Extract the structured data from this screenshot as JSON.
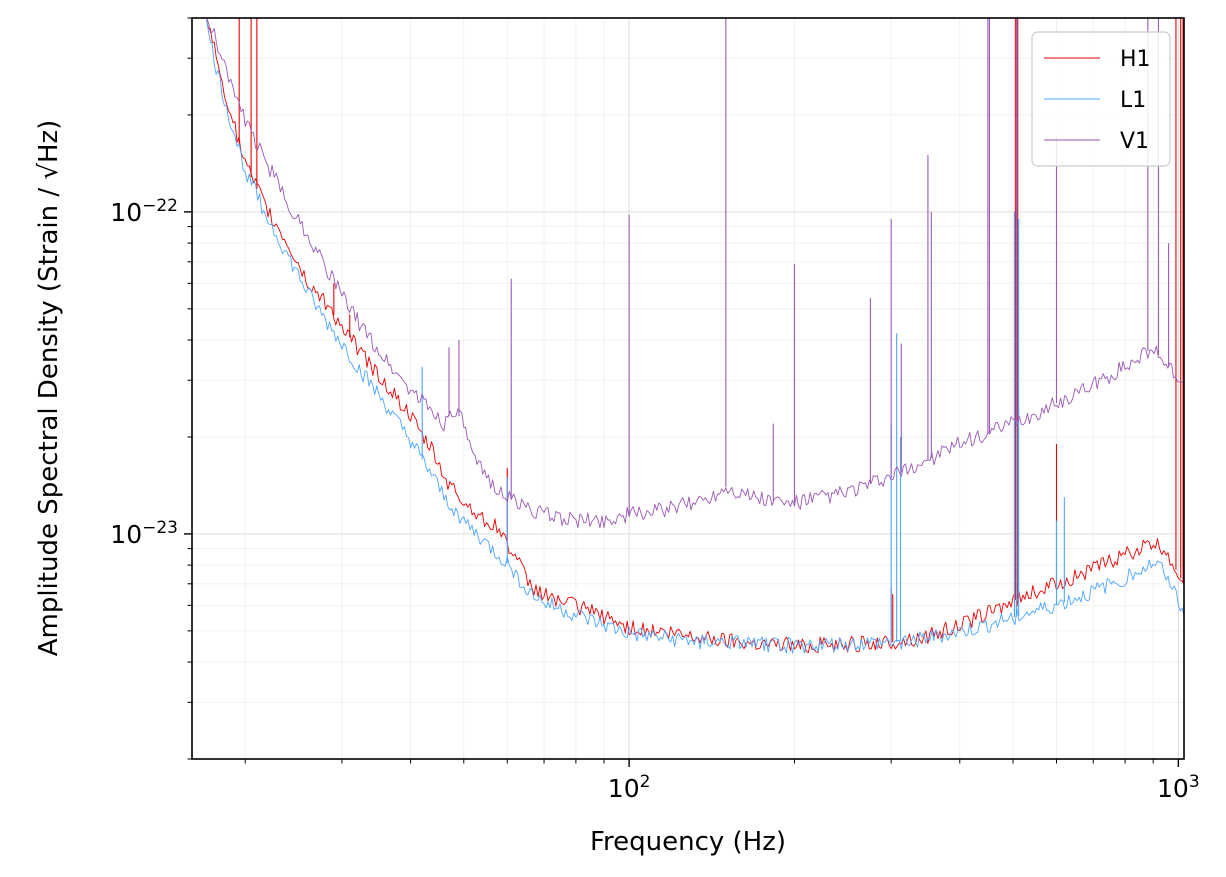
{
  "chart_data": {
    "type": "line",
    "title": "",
    "xlabel": "Frequency (Hz)",
    "ylabel": "Amplitude Spectral Density (Strain / √Hz)",
    "xscale": "log",
    "yscale": "log",
    "xlim": [
      16,
      1024
    ],
    "ylim": [
      2e-24,
      4e-22
    ],
    "grid": true,
    "legend": "top-right",
    "x_ticks": [
      {
        "value": 100,
        "base": "10",
        "exp": "2"
      },
      {
        "value": 1000,
        "base": "10",
        "exp": "3"
      }
    ],
    "y_ticks": [
      {
        "value": 1e-23,
        "base": "10",
        "exp": "−23"
      },
      {
        "value": 1e-22,
        "base": "10",
        "exp": "−22"
      }
    ],
    "series": [
      {
        "name": "H1",
        "color": "#ee0000",
        "points": [
          [
            17,
            4e-22
          ],
          [
            18,
            2.7e-22
          ],
          [
            19,
            1.9e-22
          ],
          [
            20,
            1.4e-22
          ],
          [
            22,
            1e-22
          ],
          [
            24,
            7.8e-23
          ],
          [
            26,
            6e-23
          ],
          [
            28,
            5.2e-23
          ],
          [
            30,
            4.4e-23
          ],
          [
            32,
            3.8e-23
          ],
          [
            35,
            3.1e-23
          ],
          [
            38,
            2.6e-23
          ],
          [
            40,
            2.3e-23
          ],
          [
            42,
            2e-23
          ],
          [
            44,
            1.8e-23
          ],
          [
            46,
            1.5e-23
          ],
          [
            50,
            1.25e-23
          ],
          [
            55,
            1.1e-23
          ],
          [
            58,
            1.03e-23
          ],
          [
            62,
            8.5e-24
          ],
          [
            66,
            6.9e-24
          ],
          [
            70,
            6.5e-24
          ],
          [
            80,
            6e-24
          ],
          [
            90,
            5.5e-24
          ],
          [
            100,
            5.1e-24
          ],
          [
            120,
            4.9e-24
          ],
          [
            150,
            4.7e-24
          ],
          [
            200,
            4.5e-24
          ],
          [
            250,
            4.55e-24
          ],
          [
            300,
            4.6e-24
          ],
          [
            350,
            4.8e-24
          ],
          [
            400,
            5.2e-24
          ],
          [
            450,
            5.7e-24
          ],
          [
            500,
            6.2e-24
          ],
          [
            600,
            7e-24
          ],
          [
            700,
            7.8e-24
          ],
          [
            800,
            8.6e-24
          ],
          [
            900,
            9.3e-24
          ],
          [
            950,
            8.8e-24
          ],
          [
            1000,
            7.5e-24
          ],
          [
            1024,
            7e-24
          ]
        ],
        "spikes": [
          [
            19.5,
            4e-22
          ],
          [
            20.5,
            4e-22
          ],
          [
            21,
            4e-22
          ],
          [
            29,
            6e-23
          ],
          [
            31,
            4.8e-23
          ],
          [
            60,
            1.6e-23
          ],
          [
            300,
            6.8e-24
          ],
          [
            302,
            6.5e-24
          ],
          [
            505,
            4e-22
          ],
          [
            510,
            4e-22
          ],
          [
            600,
            1.9e-23
          ],
          [
            990,
            4e-22
          ],
          [
            1010,
            4e-22
          ],
          [
            1020,
            4e-22
          ]
        ]
      },
      {
        "name": "L1",
        "color": "#4da6ff",
        "points": [
          [
            17,
            3.8e-22
          ],
          [
            18,
            2.5e-22
          ],
          [
            19,
            1.8e-22
          ],
          [
            20,
            1.35e-22
          ],
          [
            22,
            9.5e-23
          ],
          [
            24,
            7.2e-23
          ],
          [
            26,
            5.6e-23
          ],
          [
            28,
            4.6e-23
          ],
          [
            30,
            3.9e-23
          ],
          [
            32,
            3.3e-23
          ],
          [
            35,
            2.7e-23
          ],
          [
            38,
            2.2e-23
          ],
          [
            40,
            1.95e-23
          ],
          [
            42,
            1.7e-23
          ],
          [
            44,
            1.5e-23
          ],
          [
            46,
            1.3e-23
          ],
          [
            50,
            1.1e-23
          ],
          [
            55,
            9.3e-24
          ],
          [
            60,
            8.1e-24
          ],
          [
            66,
            6.6e-24
          ],
          [
            70,
            6.1e-24
          ],
          [
            80,
            5.6e-24
          ],
          [
            90,
            5.2e-24
          ],
          [
            100,
            4.9e-24
          ],
          [
            120,
            4.7e-24
          ],
          [
            150,
            4.6e-24
          ],
          [
            200,
            4.5e-24
          ],
          [
            250,
            4.55e-24
          ],
          [
            300,
            4.6e-24
          ],
          [
            350,
            4.75e-24
          ],
          [
            400,
            4.95e-24
          ],
          [
            450,
            5.2e-24
          ],
          [
            500,
            5.5e-24
          ],
          [
            600,
            6e-24
          ],
          [
            700,
            6.6e-24
          ],
          [
            800,
            7.3e-24
          ],
          [
            900,
            8.1e-24
          ],
          [
            950,
            7.6e-24
          ],
          [
            1000,
            6.2e-24
          ],
          [
            1024,
            5.6e-24
          ]
        ],
        "spikes": [
          [
            42,
            3.3e-23
          ],
          [
            60,
            1.5e-23
          ],
          [
            300,
            2.2e-23
          ],
          [
            307,
            4.2e-23
          ],
          [
            312,
            2e-23
          ],
          [
            503,
            1e-22
          ],
          [
            507,
            4e-22
          ],
          [
            512,
            9.5e-23
          ],
          [
            600,
            1.1e-23
          ],
          [
            620,
            1.3e-23
          ]
        ]
      },
      {
        "name": "V1",
        "color": "#9b59b6",
        "points": [
          [
            17,
            4e-22
          ],
          [
            18,
            3.2e-22
          ],
          [
            19,
            2.4e-22
          ],
          [
            20,
            1.9e-22
          ],
          [
            22,
            1.4e-22
          ],
          [
            24,
            1.05e-22
          ],
          [
            26,
            8.5e-23
          ],
          [
            28,
            6.8e-23
          ],
          [
            30,
            5.5e-23
          ],
          [
            32,
            4.6e-23
          ],
          [
            35,
            3.7e-23
          ],
          [
            38,
            3.1e-23
          ],
          [
            40,
            2.8e-23
          ],
          [
            43,
            2.5e-23
          ],
          [
            46,
            2.2e-23
          ],
          [
            48,
            2.45e-23
          ],
          [
            50,
            2.2e-23
          ],
          [
            52,
            1.7e-23
          ],
          [
            55,
            1.5e-23
          ],
          [
            60,
            1.3e-23
          ],
          [
            66,
            1.2e-23
          ],
          [
            70,
            1.15e-23
          ],
          [
            80,
            1.1e-23
          ],
          [
            90,
            1.1e-23
          ],
          [
            100,
            1.15e-23
          ],
          [
            120,
            1.2e-23
          ],
          [
            140,
            1.3e-23
          ],
          [
            150,
            1.4e-23
          ],
          [
            170,
            1.3e-23
          ],
          [
            190,
            1.25e-23
          ],
          [
            200,
            1.25e-23
          ],
          [
            250,
            1.35e-23
          ],
          [
            300,
            1.5e-23
          ],
          [
            350,
            1.7e-23
          ],
          [
            400,
            1.9e-23
          ],
          [
            450,
            2.05e-23
          ],
          [
            500,
            2.2e-23
          ],
          [
            550,
            2.35e-23
          ],
          [
            600,
            2.55e-23
          ],
          [
            700,
            2.9e-23
          ],
          [
            800,
            3.3e-23
          ],
          [
            880,
            3.7e-23
          ],
          [
            920,
            3.6e-23
          ],
          [
            980,
            3.2e-23
          ],
          [
            1024,
            3e-23
          ]
        ],
        "spikes": [
          [
            47,
            3.8e-23
          ],
          [
            49,
            4e-23
          ],
          [
            61,
            6.2e-23
          ],
          [
            100,
            9.8e-23
          ],
          [
            150,
            4e-22
          ],
          [
            183,
            2.2e-23
          ],
          [
            200,
            6.9e-23
          ],
          [
            275,
            5.4e-23
          ],
          [
            300,
            9.5e-23
          ],
          [
            313,
            3.9e-23
          ],
          [
            350,
            1.5e-22
          ],
          [
            355,
            1e-22
          ],
          [
            450,
            4e-22
          ],
          [
            453,
            4e-22
          ],
          [
            508,
            4e-22
          ],
          [
            600,
            1.7e-22
          ],
          [
            880,
            4e-22
          ],
          [
            920,
            4e-22
          ],
          [
            960,
            8e-23
          ]
        ]
      }
    ]
  }
}
